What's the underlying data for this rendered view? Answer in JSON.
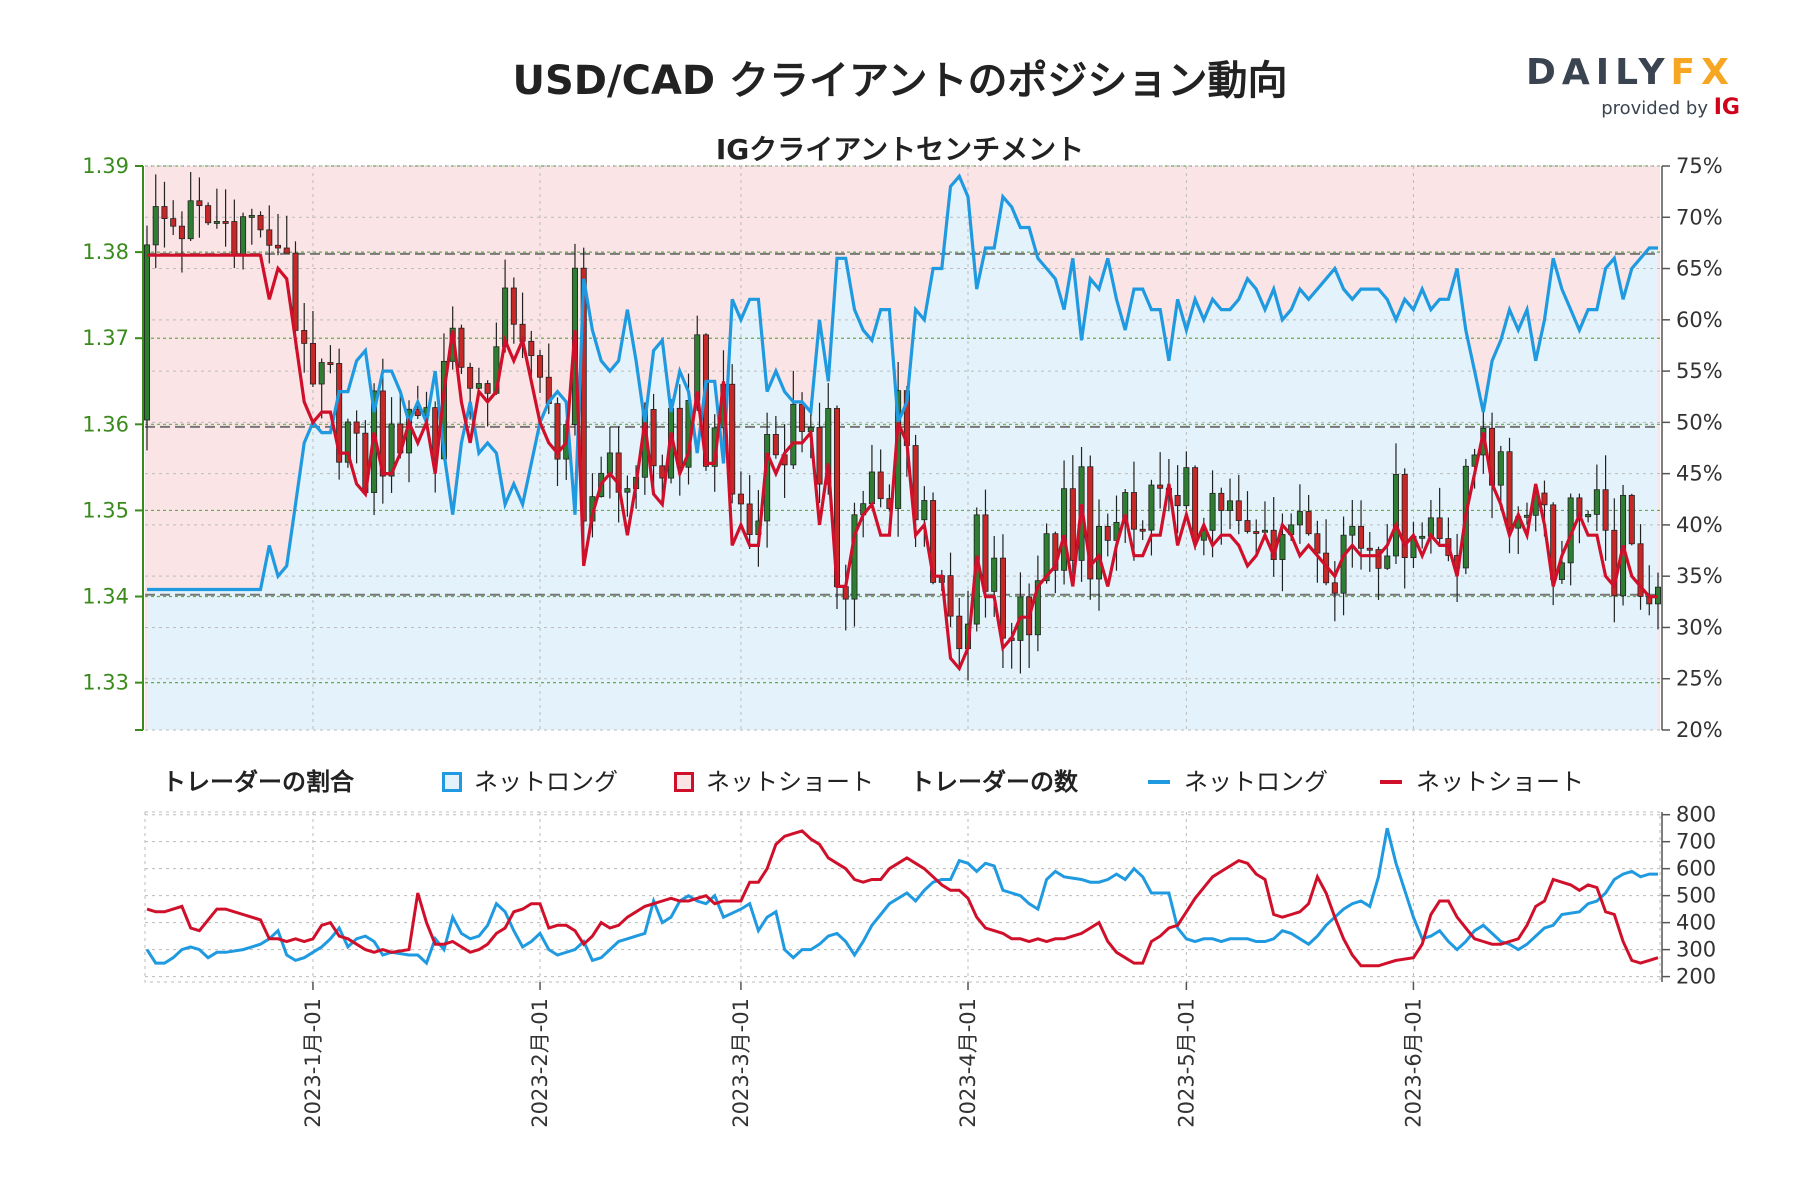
{
  "title": "USD/CAD クライアントのポジション動向",
  "subtitle": "IGクライアントセンチメント",
  "logo": {
    "main_a": "DAILY",
    "main_b": "FX",
    "sub": "provided by",
    "sub_brand": "IG"
  },
  "colors": {
    "long": "#1f9ae0",
    "short": "#d0102a",
    "long_fill": "#e4f3fb",
    "short_fill": "#fbe4e6",
    "up_candle": "#2e7d32",
    "down_candle": "#c62828",
    "price_axis": "#3a8a1c",
    "grid_green": "#6aa84f",
    "ref_gray": "#777777"
  },
  "legend": {
    "ratio_title": "トレーダーの割合",
    "ratio_long": "ネットロング",
    "ratio_short": "ネットショート",
    "count_title": "トレーダーの数",
    "count_long": "ネットロング",
    "count_short": "ネットショート"
  },
  "chart_data": [
    {
      "type": "candlestick",
      "panel": "price-and-sentiment",
      "left_axis": {
        "label": "",
        "ticks": [
          "1.33",
          "1.34",
          "1.35",
          "1.36",
          "1.37",
          "1.38",
          "1.39"
        ],
        "range": [
          1.3245,
          1.39
        ]
      },
      "right_axis": {
        "label": "",
        "ticks": [
          "20%",
          "25%",
          "30%",
          "35%",
          "40%",
          "45%",
          "50%",
          "55%",
          "60%",
          "65%",
          "70%",
          "75%"
        ],
        "range": [
          20,
          75
        ]
      },
      "x_ticks": [
        "2023-1月-01",
        "2023-2月-01",
        "2023-3月-01",
        "2023-4月-01",
        "2023-5月-01",
        "2023-6月-01"
      ],
      "grid": true,
      "reference_lines_price": [
        1.3597,
        1.3798,
        1.3402
      ],
      "series": [
        {
          "name": "ネットロング",
          "kind": "percent",
          "anchors": [
            [
              0,
              33.7
            ],
            [
              13,
              33.7
            ],
            [
              14,
              38
            ],
            [
              15,
              35
            ],
            [
              16,
              36
            ],
            [
              17,
              42
            ],
            [
              18,
              48
            ],
            [
              19,
              50
            ],
            [
              20,
              49
            ],
            [
              21,
              49
            ],
            [
              22,
              53
            ],
            [
              23,
              53
            ],
            [
              24,
              56
            ],
            [
              25,
              57
            ],
            [
              26,
              51
            ],
            [
              27,
              55
            ],
            [
              28,
              55
            ],
            [
              29,
              53
            ],
            [
              30,
              50
            ],
            [
              31,
              52
            ],
            [
              32,
              50
            ],
            [
              33,
              55
            ],
            [
              34,
              47
            ],
            [
              35,
              41
            ],
            [
              36,
              48
            ],
            [
              37,
              52
            ],
            [
              38,
              47
            ],
            [
              39,
              48
            ],
            [
              40,
              47
            ],
            [
              41,
              42
            ],
            [
              42,
              44
            ],
            [
              43,
              42
            ],
            [
              44,
              46
            ],
            [
              45,
              50
            ],
            [
              46,
              52
            ],
            [
              47,
              53
            ],
            [
              48,
              52
            ],
            [
              49,
              41
            ],
            [
              50,
              64
            ],
            [
              51,
              59
            ],
            [
              52,
              56
            ],
            [
              53,
              55
            ],
            [
              54,
              56
            ],
            [
              55,
              61
            ],
            [
              56,
              56
            ],
            [
              57,
              50
            ],
            [
              58,
              57
            ],
            [
              59,
              58
            ],
            [
              60,
              51
            ],
            [
              61,
              55
            ],
            [
              62,
              53
            ],
            [
              63,
              47
            ],
            [
              64,
              54
            ],
            [
              65,
              54
            ],
            [
              66,
              46
            ],
            [
              67,
              62
            ],
            [
              68,
              60
            ],
            [
              69,
              62
            ],
            [
              70,
              62
            ],
            [
              71,
              53
            ],
            [
              72,
              55
            ],
            [
              73,
              53
            ],
            [
              74,
              52
            ],
            [
              75,
              52
            ],
            [
              76,
              51
            ],
            [
              77,
              60
            ],
            [
              78,
              54
            ],
            [
              79,
              66
            ],
            [
              80,
              66
            ],
            [
              81,
              61
            ],
            [
              82,
              59
            ],
            [
              83,
              58
            ],
            [
              84,
              61
            ],
            [
              85,
              61
            ],
            [
              86,
              50
            ],
            [
              87,
              52
            ],
            [
              88,
              61
            ],
            [
              89,
              60
            ],
            [
              90,
              65
            ],
            [
              91,
              65
            ],
            [
              92,
              73
            ],
            [
              93,
              74
            ],
            [
              94,
              72
            ],
            [
              95,
              63
            ],
            [
              96,
              67
            ],
            [
              97,
              67
            ],
            [
              98,
              72
            ],
            [
              99,
              71
            ],
            [
              100,
              69
            ],
            [
              101,
              69
            ],
            [
              102,
              66
            ],
            [
              103,
              65
            ],
            [
              104,
              64
            ],
            [
              105,
              61
            ],
            [
              106,
              66
            ],
            [
              107,
              58
            ],
            [
              108,
              64
            ],
            [
              109,
              63
            ],
            [
              110,
              66
            ],
            [
              111,
              62
            ],
            [
              112,
              59
            ],
            [
              113,
              63
            ],
            [
              114,
              63
            ],
            [
              115,
              61
            ],
            [
              116,
              61
            ],
            [
              117,
              56
            ],
            [
              118,
              62
            ],
            [
              119,
              59
            ],
            [
              120,
              62
            ],
            [
              121,
              60
            ],
            [
              122,
              62
            ],
            [
              123,
              61
            ],
            [
              124,
              61
            ],
            [
              125,
              62
            ],
            [
              126,
              64
            ],
            [
              127,
              63
            ],
            [
              128,
              61
            ],
            [
              129,
              63
            ],
            [
              130,
              60
            ],
            [
              131,
              61
            ],
            [
              132,
              63
            ],
            [
              133,
              62
            ],
            [
              134,
              63
            ],
            [
              135,
              64
            ],
            [
              136,
              65
            ],
            [
              137,
              63
            ],
            [
              138,
              62
            ],
            [
              139,
              63
            ],
            [
              140,
              63
            ],
            [
              141,
              63
            ],
            [
              142,
              62
            ],
            [
              143,
              60
            ],
            [
              144,
              62
            ],
            [
              145,
              61
            ],
            [
              146,
              63
            ],
            [
              147,
              61
            ],
            [
              148,
              62
            ],
            [
              149,
              62
            ],
            [
              150,
              65
            ],
            [
              151,
              59
            ],
            [
              152,
              55
            ],
            [
              153,
              51
            ],
            [
              154,
              56
            ],
            [
              155,
              58
            ],
            [
              156,
              61
            ],
            [
              157,
              59
            ],
            [
              158,
              61
            ],
            [
              159,
              56
            ],
            [
              160,
              60
            ],
            [
              161,
              66
            ],
            [
              162,
              63
            ],
            [
              163,
              61
            ],
            [
              164,
              59
            ],
            [
              165,
              61
            ],
            [
              166,
              61
            ],
            [
              167,
              65
            ],
            [
              168,
              66
            ],
            [
              169,
              62
            ],
            [
              170,
              65
            ],
            [
              171,
              66
            ],
            [
              172,
              67
            ],
            [
              173,
              67
            ]
          ],
          "note": ""
        },
        {
          "name": "ネットショート",
          "kind": "percent",
          "values_are_complement_of_long": true
        }
      ]
    },
    {
      "type": "line",
      "panel": "trader-counts",
      "right_axis": {
        "ticks": [
          "200",
          "300",
          "400",
          "500",
          "600",
          "700",
          "800"
        ],
        "range": [
          180,
          810
        ]
      },
      "grid": true,
      "series": [
        {
          "name": "ネットロング",
          "values": [
            300,
            250,
            250,
            270,
            300,
            310,
            300,
            270,
            290,
            290,
            300,
            310,
            320,
            340,
            370,
            280,
            260,
            270,
            290,
            310,
            340,
            380,
            310,
            340,
            350,
            330,
            280,
            290,
            280,
            280,
            250,
            340,
            300,
            420,
            360,
            340,
            350,
            390,
            470,
            440,
            370,
            310,
            330,
            360,
            300,
            280,
            300,
            330,
            260,
            270,
            300,
            330,
            340,
            350,
            360,
            480,
            400,
            420,
            480,
            500,
            480,
            470,
            500,
            420,
            450,
            470,
            370,
            420,
            440,
            300,
            270,
            300,
            300,
            320,
            350,
            360,
            330,
            280,
            330,
            390,
            430,
            470,
            510,
            480,
            520,
            550,
            560,
            560,
            630,
            620,
            590,
            620,
            610,
            520,
            510,
            500,
            470,
            450,
            560,
            590,
            570,
            560,
            550,
            550,
            560,
            580,
            560,
            600,
            570,
            510,
            510,
            510,
            380,
            340,
            330,
            340,
            340,
            330,
            340,
            340,
            330,
            330,
            340,
            370,
            360,
            340,
            320,
            350,
            390,
            420,
            450,
            470,
            480,
            460,
            570,
            750,
            620,
            420,
            340,
            350,
            370,
            330,
            300,
            330,
            370,
            390,
            360,
            330,
            320,
            300,
            320,
            350,
            380,
            390,
            430,
            440,
            470,
            480,
            510,
            560,
            580,
            590,
            570,
            580,
            580
          ]
        },
        {
          "name": "ネットショート",
          "values": [
            450,
            440,
            440,
            450,
            460,
            380,
            370,
            410,
            450,
            450,
            440,
            430,
            420,
            410,
            340,
            340,
            330,
            340,
            330,
            340,
            390,
            400,
            350,
            340,
            320,
            300,
            290,
            300,
            290,
            300,
            510,
            400,
            320,
            320,
            330,
            310,
            290,
            300,
            320,
            360,
            380,
            440,
            450,
            470,
            470,
            380,
            390,
            390,
            370,
            320,
            350,
            400,
            380,
            390,
            420,
            440,
            460,
            470,
            480,
            490,
            480,
            480,
            490,
            500,
            470,
            480,
            480,
            480,
            550,
            550,
            600,
            690,
            720,
            730,
            740,
            710,
            690,
            640,
            620,
            600,
            560,
            550,
            560,
            560,
            600,
            640,
            620,
            600,
            570,
            540,
            520,
            520,
            490,
            420,
            380,
            370,
            360,
            340,
            340,
            330,
            340,
            330,
            340,
            340,
            350,
            360,
            380,
            400,
            330,
            290,
            270,
            250,
            250,
            330,
            350,
            380,
            390,
            440,
            490,
            530,
            570,
            590,
            610,
            630,
            620,
            580,
            560,
            430,
            420,
            430,
            440,
            470,
            570,
            510,
            420,
            340,
            280,
            240,
            240,
            240,
            250,
            260,
            270,
            320,
            430,
            480,
            480,
            420,
            380,
            340,
            330,
            320,
            320,
            330,
            340,
            390,
            460,
            480,
            560,
            550,
            540,
            520,
            540,
            530,
            440,
            430,
            330,
            260,
            250,
            260,
            270
          ]
        }
      ]
    }
  ]
}
